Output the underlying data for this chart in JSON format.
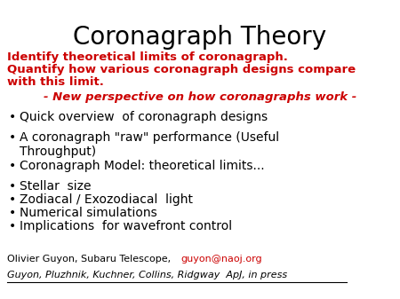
{
  "title": "Coronagraph Theory",
  "title_fontsize": 20,
  "title_color": "#000000",
  "red_text_lines": [
    "Identify theoretical limits of coronagraph.",
    "Quantify how various coronagraph designs compare",
    "with this limit."
  ],
  "red_italic_line": "- New perspective on how coronagraphs work -",
  "red_color": "#cc0000",
  "bullet_items": [
    "Quick overview  of coronagraph designs",
    "A coronagraph \"raw\" performance (Useful\nThroughput)",
    "Coronagraph Model: theoretical limits...",
    "Stellar  size",
    "Zodiacal / Exozodiacal  light",
    "Numerical simulations",
    "Implications  for wavefront control"
  ],
  "bullet_color": "#000000",
  "bullet_fontsize": 10,
  "red_fontsize": 9.5,
  "footer_normal": "Olivier Guyon, Subaru Telescope, ",
  "footer_email": "guyon@naoj.org",
  "footer_italic": "Guyon, Pluzhnik, Kuchner, Collins, Ridgway  ApJ, in press",
  "footer_color": "#000000",
  "footer_link_color": "#cc0000",
  "background_color": "#ffffff",
  "fig_width": 4.5,
  "fig_height": 3.37,
  "dpi": 100
}
